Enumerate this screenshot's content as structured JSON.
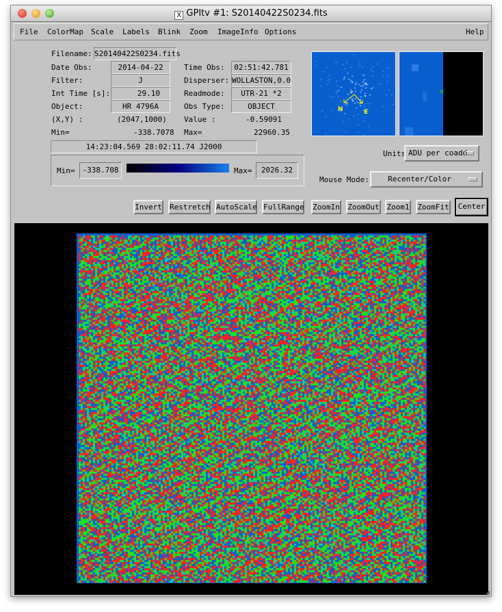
{
  "window": {
    "title": "GPItv #1:  S20140422S0234.fits",
    "x_icon": "x11-icon"
  },
  "menu": [
    "File",
    "ColorMap",
    "Scale",
    "Labels",
    "Blink",
    "Zoom",
    "ImageInfo",
    "Options"
  ],
  "help": "Help",
  "info": {
    "filename_label": "Filename:",
    "filename": "S20140422S0234.fits",
    "date_label": "Date Obs:",
    "date": "2014-04-22",
    "time_label": "Time Obs:",
    "time": "02:51:42.781",
    "filter_label": "Filter:",
    "filter": "J",
    "disperser_label": "Disperser:",
    "disperser": "WOLLASTON,0.0",
    "inttime_label": "Int Time [s]:",
    "inttime": "29.10",
    "readmode_label": "Readmode:",
    "readmode": "UTR-21 *2",
    "object_label": "Object:",
    "object": "HR 4796A",
    "obstype_label": "Obs Type:",
    "obstype": "OBJECT",
    "xy_label": "(X,Y) :",
    "xy": "(2047,1000)",
    "value_label": "Value :",
    "value": "-0.59091",
    "min_label": "Min=",
    "min": "-338.7078",
    "max_label": "Max=",
    "max": "22960.35",
    "coords": "14:23:04.569   28:02:11.74  J2000"
  },
  "scale": {
    "min_label": "Min=",
    "min": "-338.708",
    "max_label": "Max=",
    "max": "2026.32",
    "colorbar_colors": [
      "#000000",
      "#000080",
      "#1a7fe8"
    ]
  },
  "compass": {
    "n": "N",
    "e": "E"
  },
  "units": {
    "label": "Units:",
    "value": "ADU per coadd"
  },
  "mouse_mode": {
    "label": "Mouse Mode:",
    "value": "Recenter/Color"
  },
  "buttons": [
    "Invert",
    "Restretch",
    "AutoScale",
    "FullRange",
    "ZoomIn",
    "ZoomOut",
    "Zoom1",
    "ZoomFit",
    "Center"
  ],
  "colors": {
    "panel": "#c3c3c3",
    "image_bg": "#000000",
    "pan_blue": "#0a5fd0"
  }
}
